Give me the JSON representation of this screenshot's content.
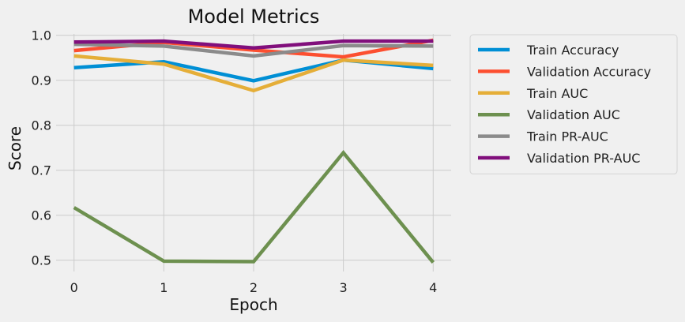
{
  "chart_data": {
    "type": "line",
    "title": "Model Metrics",
    "xlabel": "Epoch",
    "ylabel": "Score",
    "x": [
      0,
      1,
      2,
      3,
      4
    ],
    "xlim": [
      -0.2,
      4.2
    ],
    "ylim": [
      0.475,
      1.003
    ],
    "xticks": [
      "0",
      "1",
      "2",
      "3",
      "4"
    ],
    "yticks": [
      "0.5",
      "0.6",
      "0.7",
      "0.8",
      "0.9",
      "1.0"
    ],
    "grid": true,
    "legend_position": "outside-right",
    "series": [
      {
        "name": "Train Accuracy",
        "color": "#008fd5",
        "values": [
          0.928,
          0.941,
          0.899,
          0.945,
          0.926
        ]
      },
      {
        "name": "Validation Accuracy",
        "color": "#fc4f30",
        "values": [
          0.966,
          0.984,
          0.967,
          0.952,
          0.989
        ]
      },
      {
        "name": "Train AUC",
        "color": "#e5ae38",
        "values": [
          0.954,
          0.936,
          0.877,
          0.945,
          0.933
        ]
      },
      {
        "name": "Validation AUC",
        "color": "#6d904f",
        "values": [
          0.617,
          0.498,
          0.497,
          0.739,
          0.495
        ]
      },
      {
        "name": "Train PR-AUC",
        "color": "#8b8b8b",
        "values": [
          0.98,
          0.976,
          0.954,
          0.977,
          0.976
        ]
      },
      {
        "name": "Validation PR-AUC",
        "color": "#810f7c",
        "values": [
          0.985,
          0.987,
          0.972,
          0.987,
          0.987
        ]
      }
    ]
  }
}
